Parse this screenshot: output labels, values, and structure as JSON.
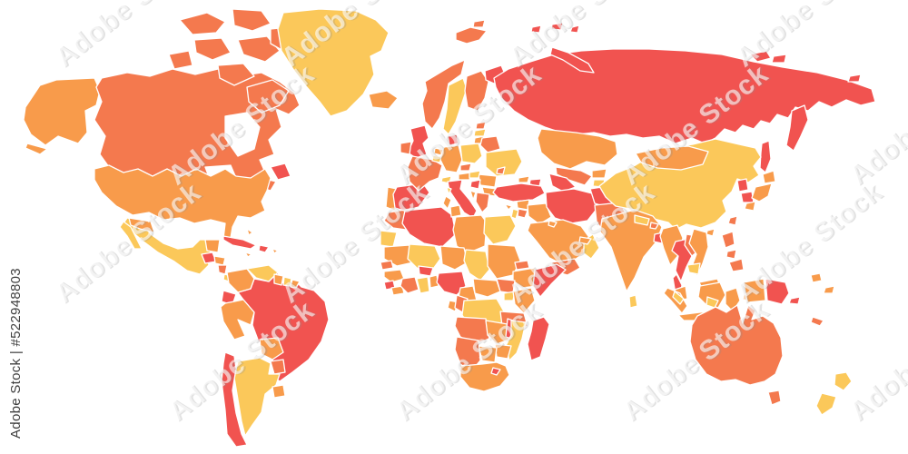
{
  "watermark": {
    "tile_text": "Adobe Stock",
    "sidebar_text": "Adobe Stock | #522948803",
    "asset_id": "#522948803"
  },
  "palette": {
    "background": "#FFFFFF",
    "map-border": "#FFFFFF",
    "map-yellow": "#FBC85A",
    "map-light-orange": "#F89B4B",
    "map-salmon": "#F4794E",
    "map-red": "#F15350",
    "watermark-tile-white": "#FFFFFF",
    "watermark-tile-shadow": "#8A8A8A",
    "watermark-sidebar": "#3F3F3F"
  },
  "map": {
    "kind": "simplified blank political world map",
    "color_shades": [
      "yellow",
      "light orange",
      "salmon orange",
      "red"
    ]
  }
}
